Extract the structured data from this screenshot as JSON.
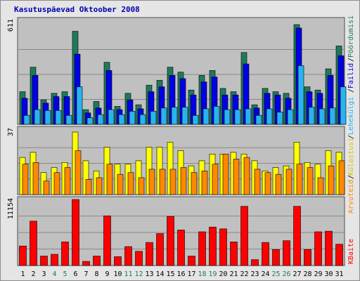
{
  "chart_data": {
    "type": "bar",
    "title": "Kasutuspäevad Oktoober 2008",
    "categories": [
      "1",
      "2",
      "3",
      "4",
      "5",
      "6",
      "7",
      "8",
      "9",
      "10",
      "11",
      "12",
      "13",
      "14",
      "15",
      "16",
      "17",
      "18",
      "19",
      "20",
      "21",
      "22",
      "23",
      "24",
      "25",
      "26",
      "27",
      "28",
      "29",
      "30",
      "31"
    ],
    "weekend_days": [
      4,
      5,
      11,
      12,
      18,
      19,
      25,
      26
    ],
    "panels": [
      {
        "id": "top",
        "ymax_label": "611",
        "ymax": 611,
        "series": [
          {
            "name": "Pöördumisi",
            "color": "#1f7a5a",
            "values": [
              200,
              350,
              150,
              190,
              200,
              570,
              90,
              140,
              380,
              110,
              190,
              120,
              240,
              270,
              350,
              320,
              210,
              300,
              330,
              220,
              200,
              440,
              120,
              220,
              200,
              190,
              620,
              230,
              210,
              340,
              480
            ]
          },
          {
            "name": "Failid",
            "color": "#0000e6",
            "values": [
              160,
              300,
              130,
              170,
              170,
              430,
              70,
              100,
              330,
              90,
              150,
              95,
              200,
              230,
              300,
              280,
              180,
              260,
              290,
              180,
              180,
              370,
              100,
              190,
              180,
              160,
              590,
              200,
              190,
              300,
              420
            ]
          },
          {
            "name": "Lehekülgi",
            "color": "#29b3f0",
            "values": [
              55,
              90,
              85,
              85,
              55,
              230,
              40,
              60,
              90,
              60,
              80,
              60,
              80,
              100,
              105,
              105,
              55,
              95,
              110,
              90,
              90,
              95,
              55,
              95,
              75,
              90,
              360,
              105,
              95,
              100,
              230
            ]
          }
        ]
      },
      {
        "id": "middle",
        "ymax_label": "37",
        "ymax": 37,
        "series": [
          {
            "name": "Külastusi",
            "color": "#ffff00",
            "values": [
              22,
              25,
              13,
              16,
              19,
              37,
              20,
              14,
              28,
              18,
              18,
              20,
              28,
              28,
              31,
              26,
              17,
              20,
              24,
              24,
              25,
              24,
              20,
              14,
              16,
              17,
              31,
              19,
              18,
              26,
              25
            ]
          },
          {
            "name": "Arvuteid",
            "color": "#ff8800",
            "values": [
              18,
              19,
              8,
              13,
              16,
              26,
              9,
              10,
              18,
              12,
              13,
              10,
              15,
              15,
              15,
              16,
              13,
              14,
              18,
              24,
              21,
              22,
              15,
              13,
              12,
              15,
              18,
              16,
              10,
              17,
              20
            ]
          }
        ]
      },
      {
        "id": "bottom",
        "ymax_label": "11154",
        "ymax": 11154,
        "series": [
          {
            "name": "KBaite",
            "color": "#ff0000",
            "values": [
              3300,
              7500,
              1600,
              1900,
              4000,
              11200,
              700,
              1600,
              8400,
              1500,
              3200,
              2400,
              3900,
              5400,
              8300,
              6000,
              1600,
              5700,
              6500,
              6200,
              4000,
              10000,
              1000,
              3900,
              2700,
              4200,
              10000,
              2700,
              5700,
              5800,
              3600
            ]
          }
        ]
      }
    ],
    "side_labels": [
      "Pöördumisi",
      "Failid",
      "Lehekülgi",
      "Külastusi",
      "Arvuteid",
      "KBaite"
    ]
  }
}
